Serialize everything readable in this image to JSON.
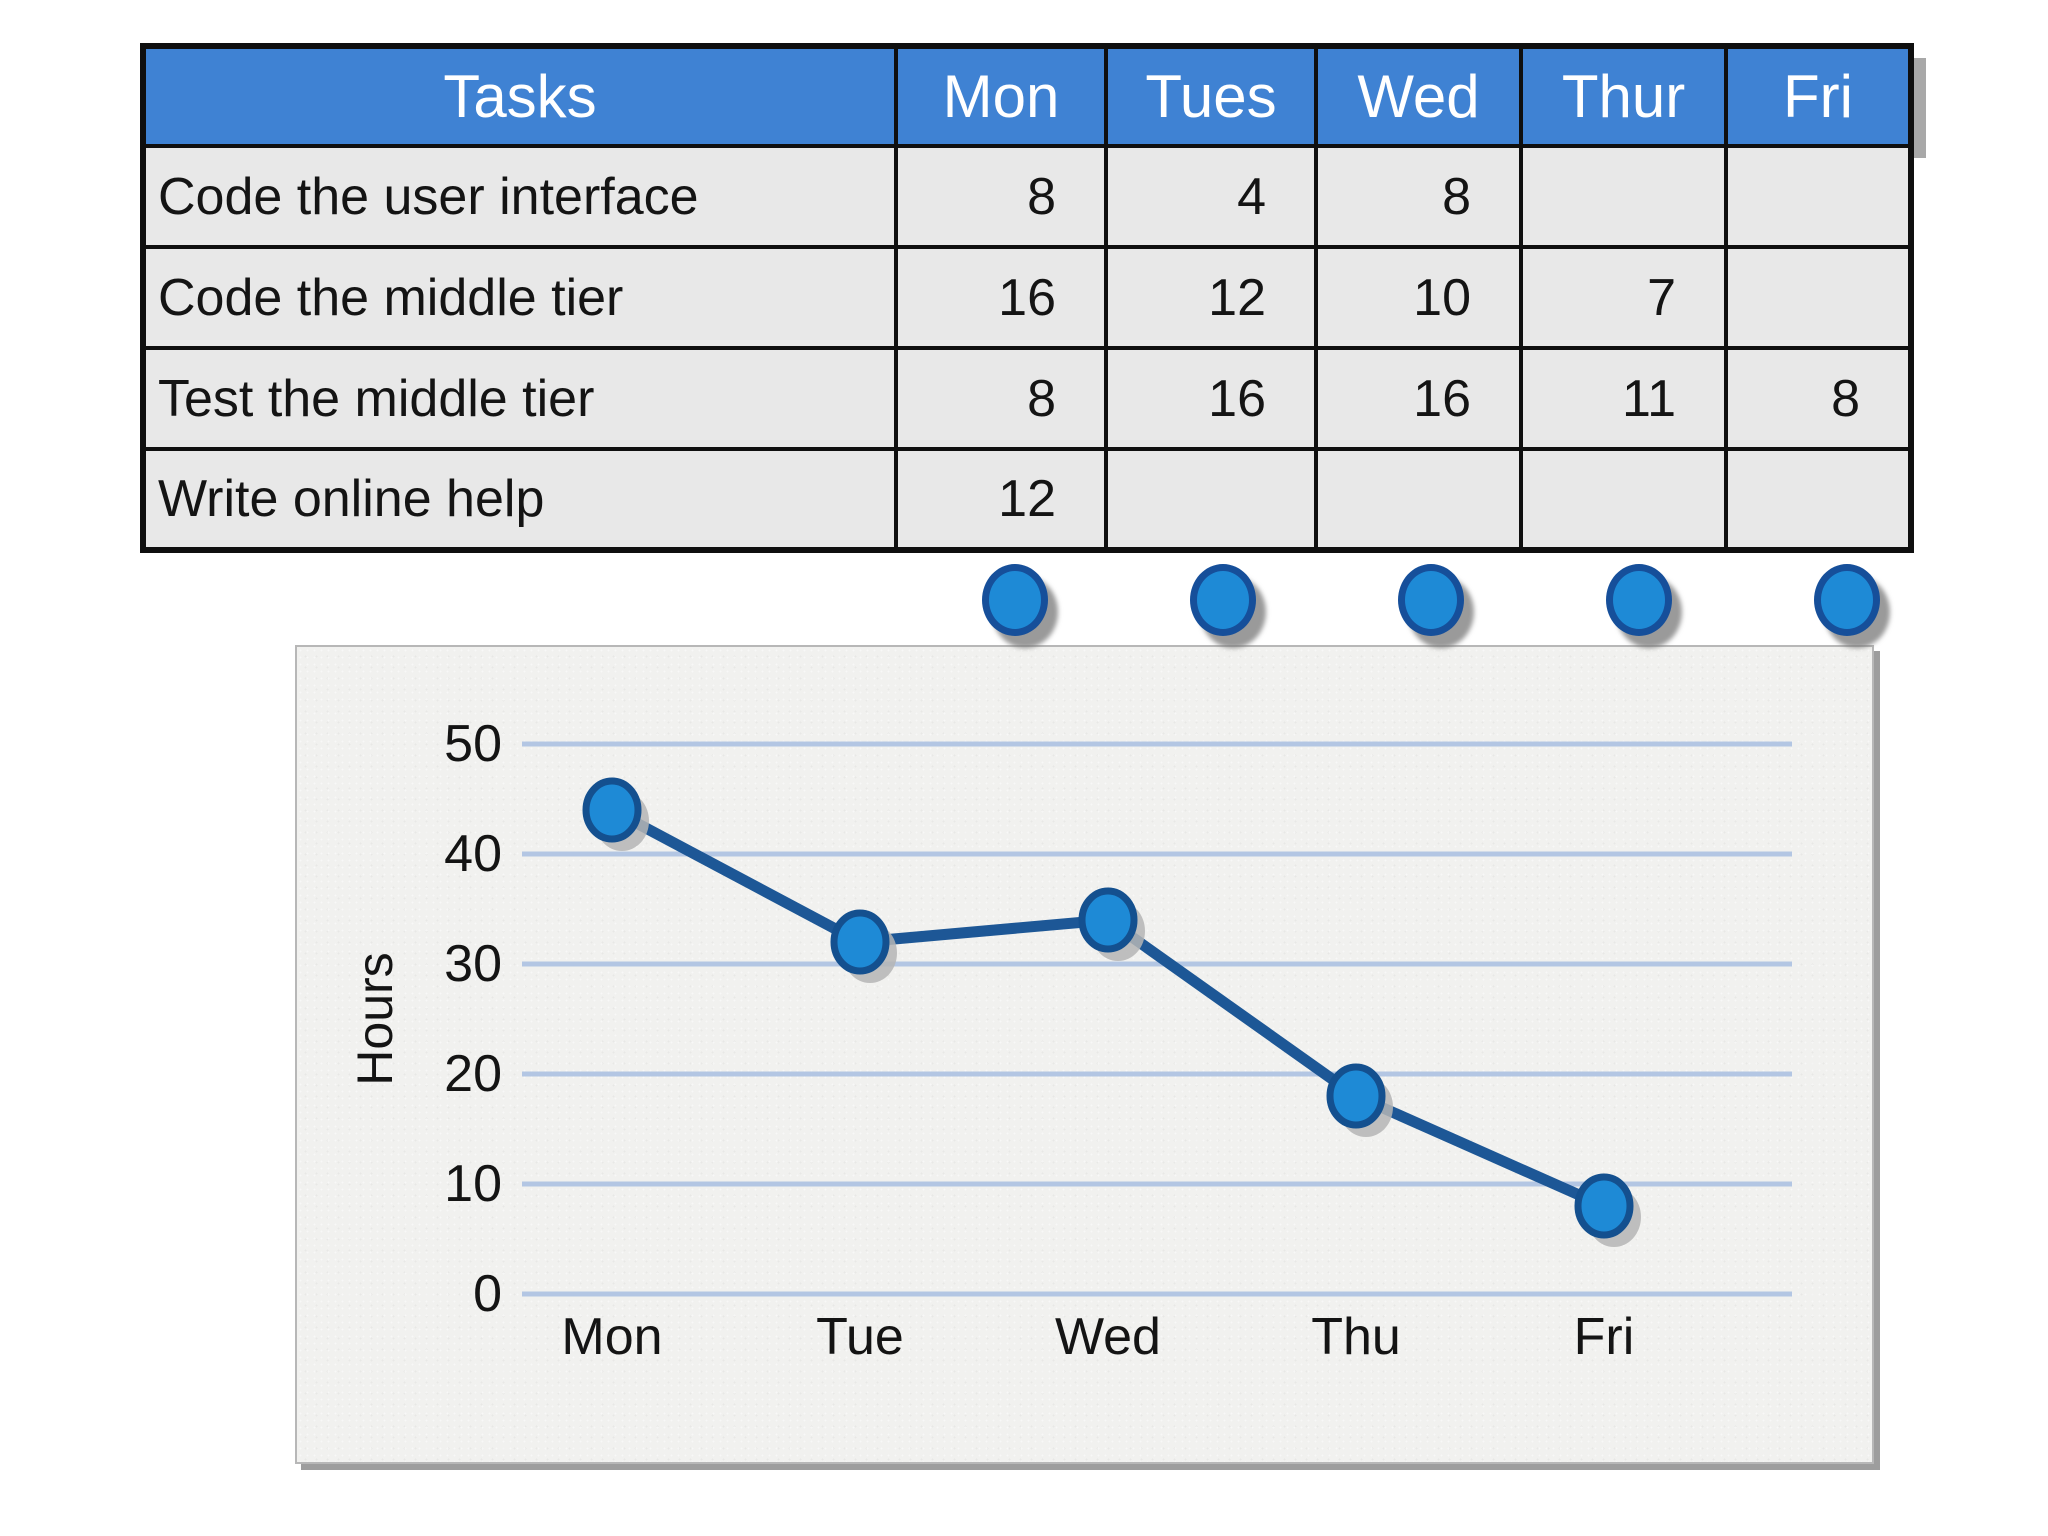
{
  "table": {
    "columns": [
      "Tasks",
      "Mon",
      "Tues",
      "Wed",
      "Thur",
      "Fri"
    ],
    "rows": [
      {
        "task": "Code the user interface",
        "values": [
          "8",
          "4",
          "8",
          "",
          ""
        ]
      },
      {
        "task": "Code the middle tier",
        "values": [
          "16",
          "12",
          "10",
          "7",
          ""
        ]
      },
      {
        "task": "Test the middle tier",
        "values": [
          "8",
          "16",
          "16",
          "11",
          "8"
        ]
      },
      {
        "task": "Write online help",
        "values": [
          "12",
          "",
          "",
          "",
          ""
        ]
      }
    ]
  },
  "day_dots": {
    "count": 5
  },
  "chart_data": {
    "type": "line",
    "categories": [
      "Mon",
      "Tue",
      "Wed",
      "Thu",
      "Fri"
    ],
    "values": [
      44,
      32,
      34,
      18,
      8
    ],
    "title": "",
    "xlabel": "",
    "ylabel": "Hours",
    "ylim": [
      0,
      50
    ],
    "yticks": [
      0,
      10,
      20,
      30,
      40,
      50
    ],
    "grid": true,
    "legend": false
  },
  "colors": {
    "header_bg": "#3f82d3",
    "header_text": "#ffffff",
    "cell_bg": "#e8e8e8",
    "table_border": "#0f0f0f",
    "line": "#1d5796",
    "marker_fill": "#1e8ad6",
    "marker_stroke": "#14508f",
    "marker_shadow": "#b5b5b5",
    "gridline": "#b3c6e3",
    "panel_bg": "#f1f1ef",
    "axis_text": "#141414",
    "dot_fill": "#1e8ad6",
    "dot_stroke": "#164f9a"
  }
}
